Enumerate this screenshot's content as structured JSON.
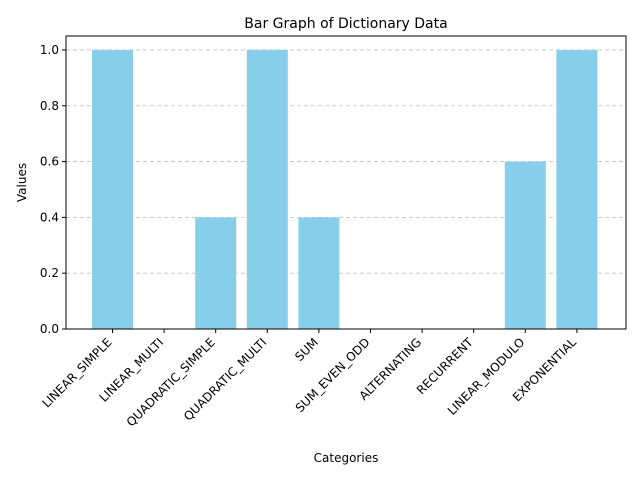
{
  "chart_data": {
    "type": "bar",
    "title": "Bar Graph of Dictionary Data",
    "xlabel": "Categories",
    "ylabel": "Values",
    "categories": [
      "LINEAR_SIMPLE",
      "LINEAR_MULTI",
      "QUADRATIC_SIMPLE",
      "QUADRATIC_MULTI",
      "SUM",
      "SUM_EVEN_ODD",
      "ALTERNATING",
      "RECURRENT",
      "LINEAR_MODULO",
      "EXPONENTIAL"
    ],
    "values": [
      1.0,
      0.0,
      0.4,
      1.0,
      0.4,
      0.0,
      0.0,
      0.0,
      0.6,
      1.0
    ],
    "ylim": [
      0,
      1.05
    ],
    "yticks": [
      "0.0",
      "0.2",
      "0.4",
      "0.6",
      "0.8",
      "1.0"
    ],
    "grid": "y-dashed",
    "bar_color": "#87ceeb",
    "grid_color": "#c0c0c0"
  }
}
